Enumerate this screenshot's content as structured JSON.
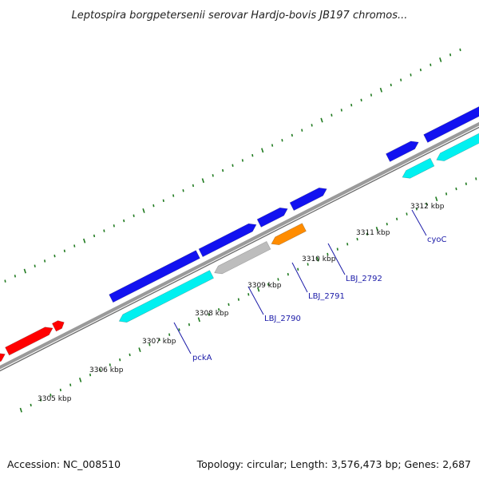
{
  "title": "Leptospira borgpetersenii serovar Hardjo-bovis JB197 chromos...",
  "footer": {
    "accession": "Accession: NC_008510",
    "summary": "Topology: circular; Length: 3,576,473 bp; Genes: 2,687"
  },
  "colors": {
    "backbone": "#8a8a8a",
    "tick": "#1f7a1f",
    "gene_label": "#1a1aa8",
    "red": "#ff0000",
    "blue": "#1212f0",
    "cyan": "#00f0f0",
    "gray": "#bdbdbd",
    "orange": "#ff8c00"
  },
  "ticks": [
    {
      "label": "3305 kbp"
    },
    {
      "label": "3306 kbp"
    },
    {
      "label": "3307 kbp"
    },
    {
      "label": "3308 kbp"
    },
    {
      "label": "3309 kbp"
    },
    {
      "label": "3310 kbp"
    },
    {
      "label": "3311 kbp"
    },
    {
      "label": "3312 kbp"
    }
  ],
  "gene_labels": [
    {
      "text": "pckA"
    },
    {
      "text": "LBJ_2790"
    },
    {
      "text": "LBJ_2791"
    },
    {
      "text": "LBJ_2792"
    },
    {
      "text": "cyoC"
    }
  ]
}
